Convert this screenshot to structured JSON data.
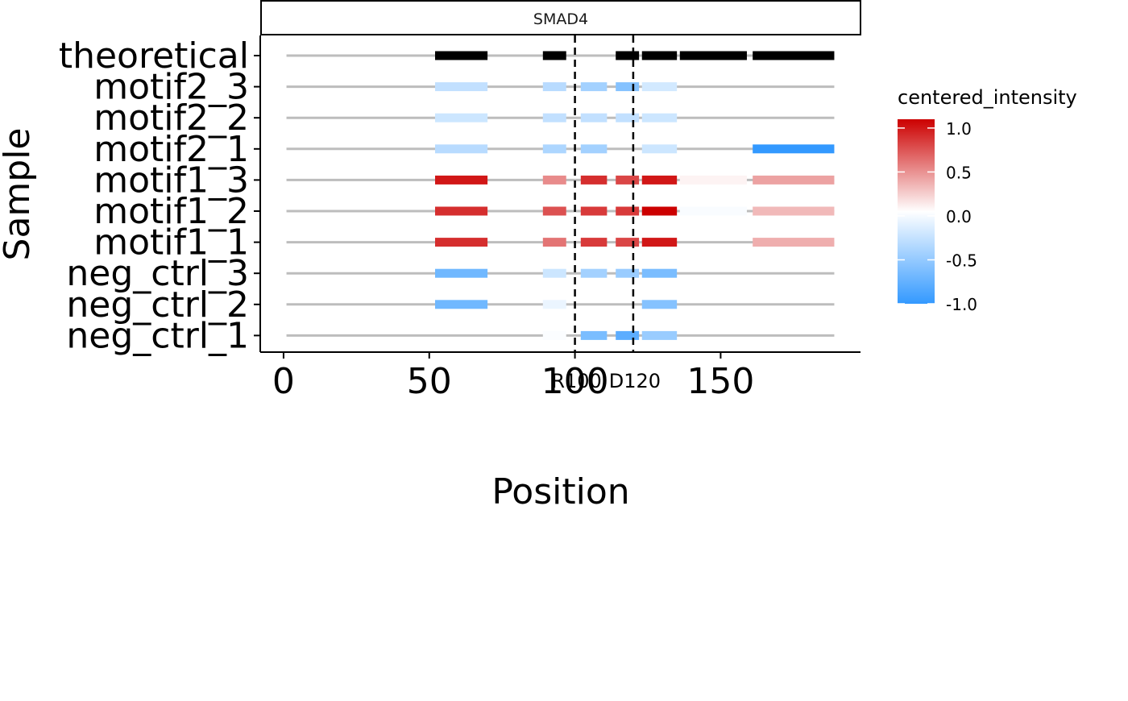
{
  "chart_data": {
    "type": "bar",
    "facet_label": "SMAD4",
    "xlabel": "Position",
    "ylabel": "Sample",
    "xlim": [
      -8,
      198
    ],
    "x_ticks": [
      0,
      50,
      100,
      150
    ],
    "x_tick_labels": [
      "0",
      "50",
      "100",
      "150"
    ],
    "samples": [
      "theoretical",
      "motif2_3",
      "motif2_2",
      "motif2_1",
      "motif1_3",
      "motif1_2",
      "motif1_1",
      "neg_ctrl_3",
      "neg_ctrl_2",
      "neg_ctrl_1"
    ],
    "backbone": [
      1,
      189
    ],
    "vlines": [
      {
        "x": 100,
        "label": "R100"
      },
      {
        "x": 120,
        "label": "D120"
      }
    ],
    "segment_starts": [
      52,
      89,
      102,
      114,
      123,
      136,
      161
    ],
    "segment_ends": [
      70,
      97,
      111,
      122,
      135,
      159,
      189
    ],
    "theoretical_segments": [
      [
        52,
        70
      ],
      [
        89,
        97
      ],
      [
        114,
        122
      ],
      [
        123,
        135
      ],
      [
        136,
        159
      ],
      [
        161,
        189
      ]
    ],
    "intensities": {
      "motif2_3": [
        -0.3,
        -0.35,
        -0.45,
        -0.6,
        -0.22,
        null,
        null
      ],
      "motif2_2": [
        -0.25,
        -0.3,
        -0.3,
        -0.3,
        -0.25,
        null,
        null
      ],
      "motif2_1": [
        -0.35,
        -0.4,
        -0.45,
        null,
        -0.25,
        null,
        -1.0
      ],
      "motif1_3": [
        1.0,
        0.5,
        0.9,
        0.8,
        1.0,
        0.05,
        0.4
      ],
      "motif1_2": [
        0.9,
        0.75,
        0.85,
        0.85,
        1.1,
        -0.03,
        0.3
      ],
      "motif1_1": [
        0.9,
        0.6,
        0.85,
        0.8,
        1.0,
        null,
        0.35
      ],
      "neg_ctrl_3": [
        -0.7,
        -0.25,
        -0.45,
        -0.5,
        -0.65,
        null,
        null
      ],
      "neg_ctrl_2": [
        -0.7,
        -0.1,
        null,
        null,
        -0.6,
        null,
        null
      ],
      "neg_ctrl_1": [
        null,
        -0.02,
        -0.65,
        -0.8,
        -0.5,
        null,
        null
      ]
    },
    "legend": {
      "title": "centered_intensity",
      "ticks": [
        1.0,
        0.5,
        0.0,
        -0.5,
        -1.0
      ],
      "tick_labels": [
        "1.0",
        "0.5",
        "0.0",
        "-0.5",
        "-1.0"
      ],
      "range": [
        -1.0,
        1.1
      ],
      "placement": "right"
    },
    "colors": {
      "low": "#3399FF",
      "mid": "#FFFFFF",
      "high": "#CC0000",
      "theoretical": "#000000",
      "backbone": "#BDBDBD"
    },
    "grid": false
  }
}
